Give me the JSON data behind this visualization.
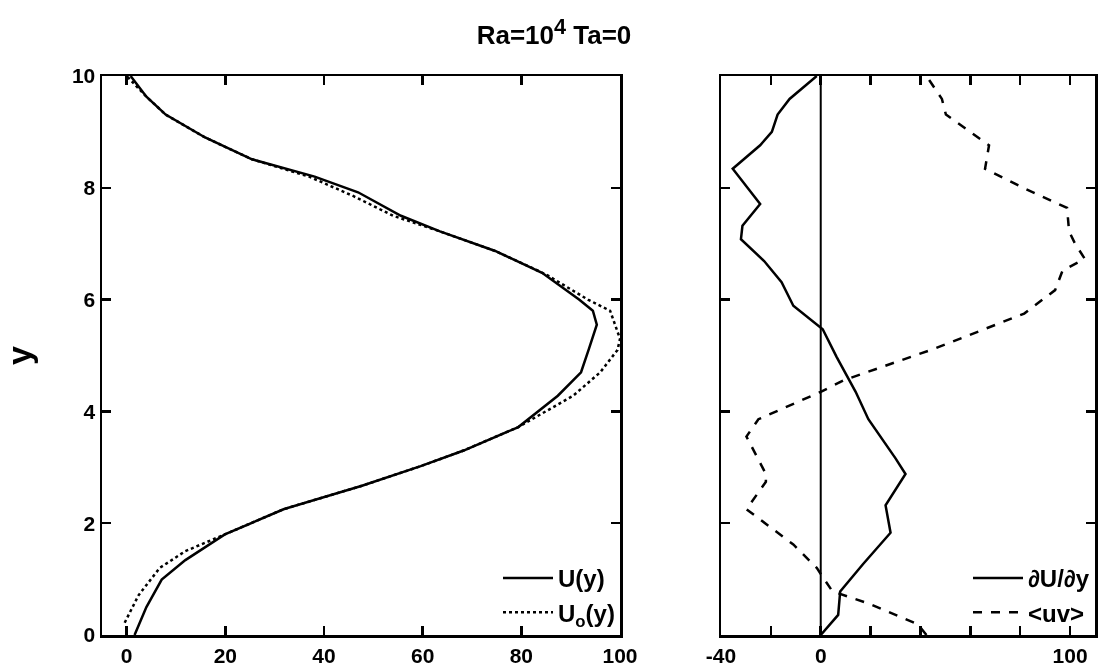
{
  "chart_data": [
    {
      "type": "line",
      "title": "Ra=10$^{4}$   Ta=0",
      "ylabel": "y",
      "xlim": [
        -5,
        100
      ],
      "xticks": [
        0,
        20,
        40,
        60,
        80,
        100
      ],
      "ylim": [
        0,
        10
      ],
      "yticks": [
        0,
        2,
        4,
        6,
        8,
        10
      ],
      "grid": false,
      "legend": "bottom right",
      "series": [
        {
          "name": "U(y)",
          "color": "#000000",
          "line_style": "solid",
          "x": [
            1.6,
            4,
            7.1,
            11.9,
            19.9,
            31.8,
            47.7,
            59.6,
            68.3,
            79.4,
            87.4,
            92.1,
            93.7,
            95.3,
            94.5,
            91.7,
            84.2,
            74.7,
            63.5,
            55.6,
            46.9,
            38.1,
            25.4,
            15.9,
            7.9,
            4,
            0.8
          ],
          "values": [
            0,
            0.5,
            0.99,
            1.34,
            1.8,
            2.25,
            2.67,
            3.02,
            3.3,
            3.72,
            4.28,
            4.7,
            5.12,
            5.55,
            5.8,
            6,
            6.48,
            6.87,
            7.22,
            7.5,
            7.92,
            8.2,
            8.51,
            8.9,
            9.31,
            9.63,
            10
          ]
        },
        {
          "name": "U$_{o}$(y)",
          "color": "#000000",
          "line_style": "dotted",
          "x": [
            -0.4,
            2.4,
            6.7,
            11.9,
            19.9,
            31.8,
            47.7,
            59.6,
            68.3,
            79.4,
            90.5,
            96,
            99.5,
            100,
            98,
            93.5,
            85,
            74.7,
            63.5,
            54,
            46,
            37,
            25.4,
            15.9,
            7.9,
            4,
            0
          ],
          "values": [
            0.22,
            0.71,
            1.2,
            1.5,
            1.8,
            2.25,
            2.67,
            3.02,
            3.3,
            3.72,
            4.28,
            4.7,
            5.1,
            5.3,
            5.8,
            6,
            6.45,
            6.87,
            7.22,
            7.5,
            7.85,
            8.2,
            8.51,
            8.9,
            9.31,
            9.63,
            10
          ]
        }
      ]
    },
    {
      "type": "line",
      "xlim": [
        -40,
        110
      ],
      "xticks": [
        -40,
        {
          "value": -20,
          "label": null
        },
        0,
        {
          "value": 20,
          "label": null
        },
        {
          "value": 40,
          "label": null
        },
        {
          "value": 60,
          "label": null
        },
        {
          "value": 80,
          "label": null
        },
        100
      ],
      "ylim": [
        0,
        10
      ],
      "yticks": [
        0,
        2,
        4,
        6,
        8,
        10
      ],
      "tick_labels": "x",
      "grid": false,
      "legend": "bottom right",
      "ref_lines": [
        {
          "axis": "x",
          "value": 0,
          "color": "#000000"
        }
      ],
      "series": [
        {
          "name": "∂U/∂y",
          "color": "#000000",
          "line_style": "solid",
          "x": [
            0,
            7,
            7.8,
            17,
            28,
            26,
            34,
            30,
            19.1,
            14,
            6.3,
            0.8,
            -11,
            -15.7,
            -22.7,
            -32,
            -31.4,
            -24.3,
            -35.3,
            -24.3,
            -19.6,
            -17.3,
            -12.5,
            -1.6
          ],
          "values": [
            0,
            0.36,
            0.78,
            1.27,
            1.83,
            2.32,
            2.88,
            3.16,
            3.86,
            4.35,
            4.98,
            5.47,
            5.89,
            6.31,
            6.69,
            7.08,
            7.32,
            7.71,
            8.34,
            8.76,
            9,
            9.31,
            9.59,
            10
          ]
        },
        {
          "name": "<uv>",
          "color": "#000000",
          "line_style": "dashed",
          "x": [
            42.4,
            39,
            18.8,
            4.7,
            -1.6,
            -11,
            -29.8,
            -22,
            -22,
            -29.8,
            -25,
            0,
            9.4,
            45.5,
            81.6,
            94,
            97,
            105.9,
            102,
            99.6,
            98.8,
            81.6,
            65.9,
            67.5,
            50.2,
            48.6,
            42.4
          ],
          "values": [
            0,
            0.19,
            0.57,
            0.78,
            1.2,
            1.62,
            2.25,
            2.74,
            2.88,
            3.55,
            3.86,
            4.35,
            4.56,
            5.12,
            5.75,
            6.17,
            6.52,
            6.73,
            7,
            7.22,
            7.64,
            7.99,
            8.34,
            8.76,
            9.31,
            9.59,
            10
          ]
        }
      ]
    }
  ]
}
